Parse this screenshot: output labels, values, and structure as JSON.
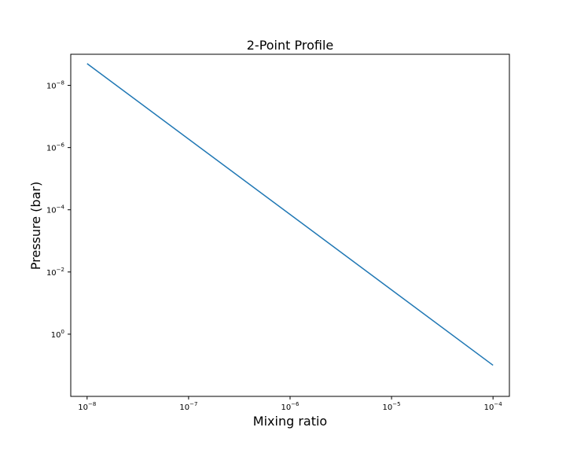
{
  "chart_data": {
    "type": "line",
    "title": "2-Point Profile",
    "xlabel": "Mixing ratio",
    "ylabel": "Pressure (bar)",
    "x_scale": "log",
    "y_scale": "log",
    "y_inverted": true,
    "xlim": [
      6.9e-09,
      0.000145
    ],
    "ylim": [
      100,
      1e-09
    ],
    "xticks": [
      {
        "value": 1e-08,
        "base": "10",
        "exp": "−8"
      },
      {
        "value": 1e-07,
        "base": "10",
        "exp": "−7"
      },
      {
        "value": 1e-06,
        "base": "10",
        "exp": "−6"
      },
      {
        "value": 1e-05,
        "base": "10",
        "exp": "−5"
      },
      {
        "value": 0.0001,
        "base": "10",
        "exp": "−4"
      }
    ],
    "yticks": [
      {
        "value": 1e-08,
        "base": "10",
        "exp": "−8"
      },
      {
        "value": 1e-06,
        "base": "10",
        "exp": "−6"
      },
      {
        "value": 0.0001,
        "base": "10",
        "exp": "−4"
      },
      {
        "value": 0.01,
        "base": "10",
        "exp": "−2"
      },
      {
        "value": 1,
        "base": "10",
        "exp": "0"
      }
    ],
    "series": [
      {
        "color": "#1f77b4",
        "x": [
          1e-08,
          0.0001
        ],
        "y": [
          2e-09,
          10
        ]
      }
    ],
    "grid": false,
    "legend": false
  }
}
